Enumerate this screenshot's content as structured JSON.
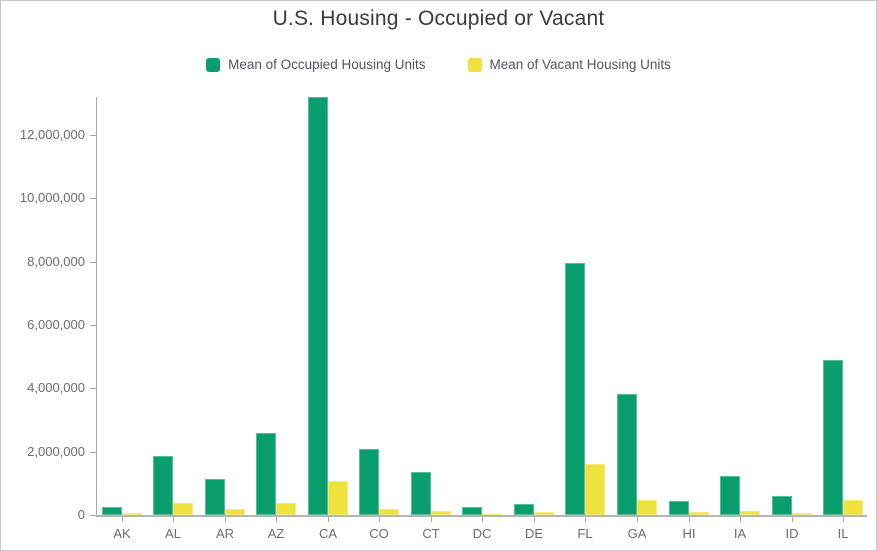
{
  "chart_data": {
    "type": "bar",
    "title": "U.S. Housing - Occupied or Vacant",
    "categories": [
      "AK",
      "AL",
      "AR",
      "AZ",
      "CA",
      "CO",
      "CT",
      "DC",
      "DE",
      "FL",
      "GA",
      "HI",
      "IA",
      "ID",
      "IL"
    ],
    "series": [
      {
        "name": "Mean of Occupied Housing Units",
        "color": "#0a9e6f",
        "values": [
          250000,
          1860000,
          1140000,
          2590000,
          13200000,
          2090000,
          1360000,
          240000,
          350000,
          7950000,
          3820000,
          440000,
          1230000,
          600000,
          4890000
        ]
      },
      {
        "name": "Mean of Vacant Housing Units",
        "color": "#f0e23e",
        "values": [
          70000,
          380000,
          190000,
          380000,
          1080000,
          200000,
          120000,
          35000,
          80000,
          1610000,
          470000,
          80000,
          120000,
          60000,
          480000
        ]
      }
    ],
    "xlabel": "",
    "ylabel": "",
    "y_ticks": [
      0,
      2000000,
      4000000,
      6000000,
      8000000,
      10000000,
      12000000
    ],
    "y_tick_labels": [
      "0",
      "2,000,000",
      "4,000,000",
      "6,000,000",
      "8,000,000",
      "10,000,000",
      "12,000,000"
    ],
    "ylim": [
      0,
      13500000
    ],
    "grid": false,
    "legend_position": "top"
  },
  "colors": {
    "occupied": "#0a9e6f",
    "vacant": "#f0e23e",
    "axis_line": "#a9a9a9",
    "tick_text": "#6b6b72",
    "legend_text": "#56525e",
    "title_text": "#3a3a3a",
    "frame_border": "#c6c6c6"
  }
}
